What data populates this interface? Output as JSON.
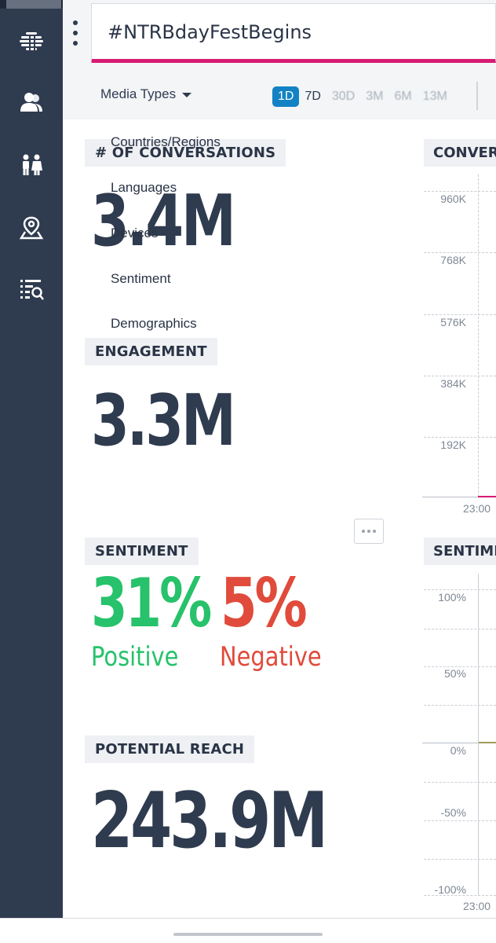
{
  "header": {
    "search_query": "#NTRBdayFestBegins",
    "media_types_label": "Media Types",
    "ranges": [
      "1D",
      "7D",
      "30D",
      "3M",
      "6M",
      "13M"
    ],
    "active_range": "1D"
  },
  "sidebar": {
    "icons": [
      "logo-icon",
      "user-icon",
      "people-icon",
      "map-pin-icon",
      "list-search-icon"
    ]
  },
  "menu": {
    "items": [
      "Countries/Regions",
      "Languages",
      "Devices",
      "Sentiment",
      "Demographics"
    ]
  },
  "metrics": {
    "conversations": {
      "label": "# OF CONVERSATIONS",
      "value": "3.4M"
    },
    "engagement": {
      "label": "ENGAGEMENT",
      "value": "3.3M"
    },
    "sentiment": {
      "label": "SENTIMENT",
      "positive_value": "31%",
      "positive_label": "Positive",
      "negative_value": "5%",
      "negative_label": "Negative"
    },
    "potential_reach": {
      "label": "POTENTIAL REACH",
      "value": "243.9M"
    }
  },
  "charts": {
    "conversations": {
      "title": "CONVERSATIONS",
      "y_ticks": [
        "960K",
        "768K",
        "576K",
        "384K",
        "192K"
      ],
      "x_label": "23:00"
    },
    "sentiment": {
      "title": "SENTIMENT",
      "y_ticks": [
        "100%",
        "50%",
        "0%",
        "-50%",
        "-100%"
      ],
      "x_label": "23:00"
    }
  },
  "colors": {
    "sidebar": "#2f3b4f",
    "accent_pink": "#d81b74",
    "active_blue": "#1282c4",
    "positive_green": "#27c26b",
    "negative_red": "#e04b3c"
  }
}
